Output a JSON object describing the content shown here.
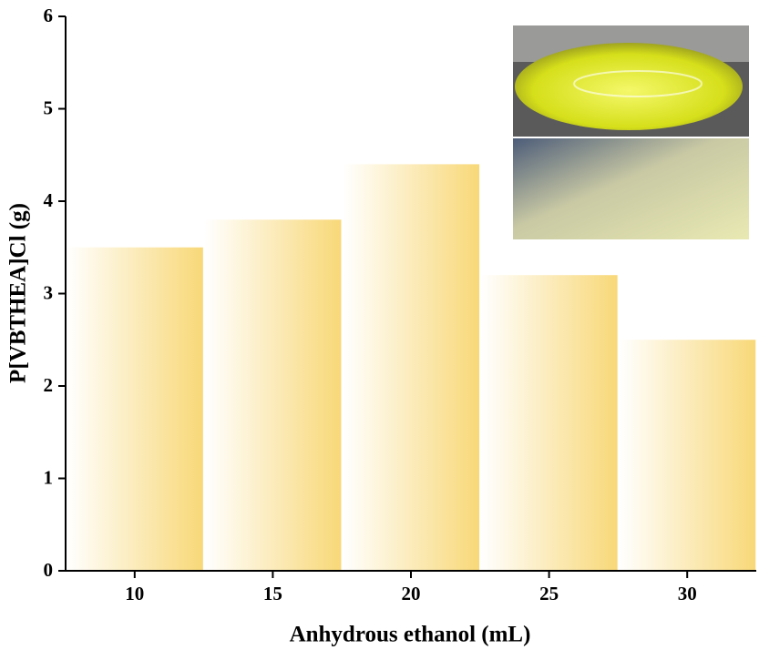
{
  "chart_data": {
    "type": "bar",
    "x_label": "Anhydrous ethanol (mL)",
    "y_label": "P[VBTHEA]Cl (g)",
    "categories": [
      "10",
      "15",
      "20",
      "25",
      "30"
    ],
    "values": [
      3.5,
      3.8,
      4.4,
      3.2,
      2.5
    ],
    "color": "#f8d878",
    "ylim": [
      0,
      6
    ],
    "yticks": [
      0,
      1,
      2,
      3,
      4,
      5,
      6
    ]
  }
}
